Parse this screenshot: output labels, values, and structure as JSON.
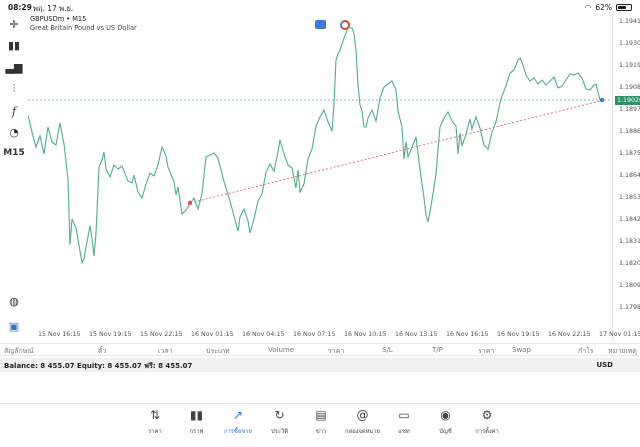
{
  "status_bar": {
    "time": "08:29",
    "date": "พฤ. 17 พ.ย.",
    "battery": "62%",
    "battery_level": 0.62
  },
  "chart": {
    "symbol": "GBPUSDm • M15",
    "description": "Great Britain Pound vs US Dollar",
    "timeframe": "M15",
    "current_price": "1.19026",
    "line_color": "#4fae86",
    "trendline_color": "#d9534f"
  },
  "left_toolbar": {
    "items": [
      "crosshair-icon",
      "candles-icon",
      "indicators-icon",
      "settings-lines-icon",
      "function-icon",
      "objects-icon",
      "timeframe-label"
    ],
    "timeframe": "M15"
  },
  "price_axis": [
    "1.19410",
    "1.19300",
    "1.19190",
    "1.19080",
    "1.18970",
    "1.18860",
    "1.18750",
    "1.18640",
    "1.18530",
    "1.18420",
    "1.18310",
    "1.18200",
    "1.18090",
    "1.17980"
  ],
  "time_axis": [
    "15 Nov 16:15",
    "15 Nov 19:15",
    "15 Nov 22:15",
    "16 Nov 01:15",
    "16 Nov 04:15",
    "16 Nov 07:15",
    "16 Nov 10:15",
    "16 Nov 13:15",
    "16 Nov 16:15",
    "16 Nov 19:15",
    "16 Nov 22:15",
    "17 Nov 01:15"
  ],
  "table_columns": [
    "สัญลักษณ์",
    "ตั๋ว",
    "เวลา",
    "ประเภท",
    "Volume",
    "ราคา",
    "S/L",
    "T/P",
    "ราคา",
    "Swap",
    "กำไร",
    "หมายเหตุ"
  ],
  "balance": {
    "text": "Balance: 8 455.07 Equity: 8 455.07 ฟรี: 8 455.07",
    "currency": "USD"
  },
  "bottom_nav": [
    {
      "label": "ราคา",
      "icon": "quotes-icon"
    },
    {
      "label": "กราฟ",
      "icon": "chart-icon"
    },
    {
      "label": "การซื้อขาย",
      "icon": "trade-icon",
      "active": true
    },
    {
      "label": "ประวัติ",
      "icon": "history-icon"
    },
    {
      "label": "ข่าว",
      "icon": "news-icon"
    },
    {
      "label": "กล่องจดหมาย",
      "icon": "mailbox-icon"
    },
    {
      "label": "แชท",
      "icon": "chat-icon"
    },
    {
      "label": "บัญชี",
      "icon": "account-icon"
    },
    {
      "label": "การตั้งค่า",
      "icon": "settings-icon"
    }
  ]
}
